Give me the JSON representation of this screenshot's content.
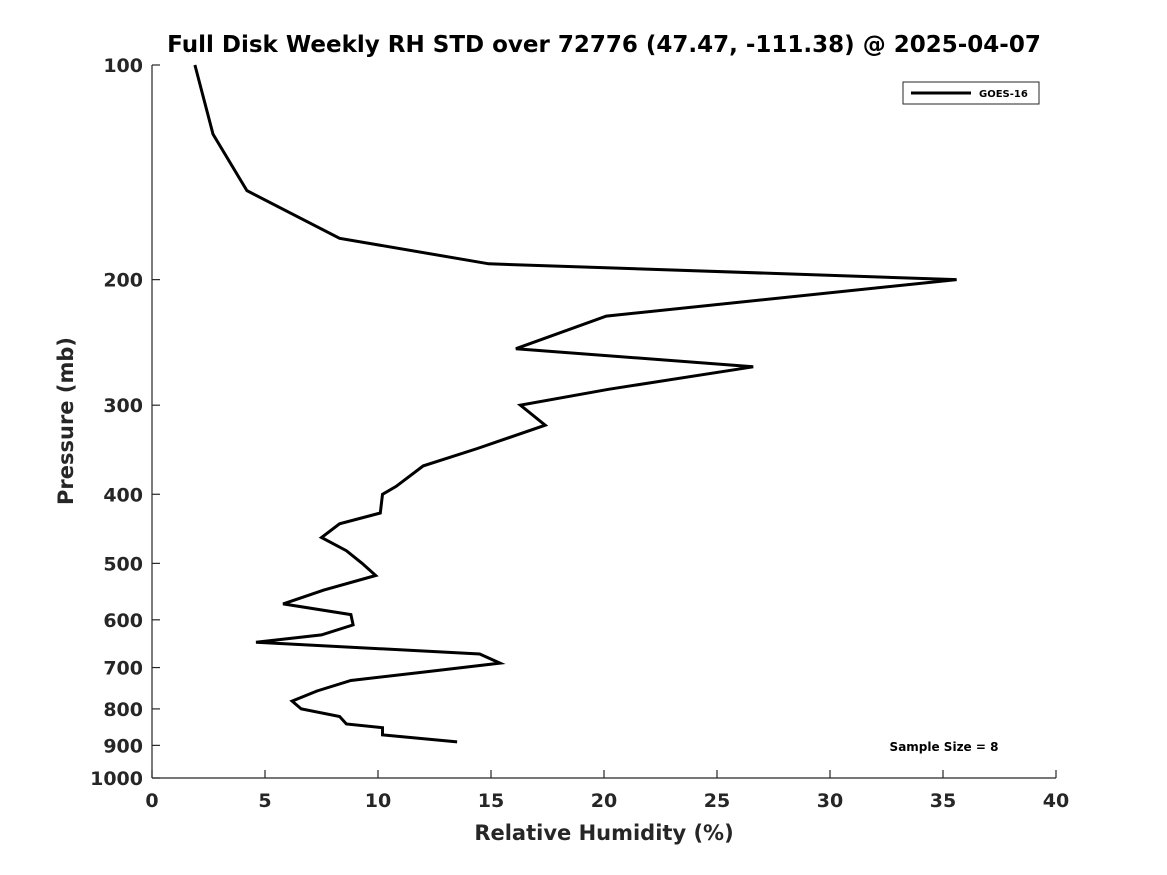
{
  "chart_data": {
    "type": "line",
    "title": "Full Disk Weekly RH STD over 72776 (47.47, -111.38) @ 2025-04-07",
    "xlabel": "Relative Humidity (%)",
    "ylabel": "Pressure (mb)",
    "xlim": [
      0,
      40
    ],
    "ylim": [
      100,
      1000
    ],
    "y_scale": "log",
    "y_reversed": true,
    "x_ticks": [
      0,
      5,
      10,
      15,
      20,
      25,
      30,
      35,
      40
    ],
    "y_ticks": [
      100,
      200,
      300,
      400,
      500,
      600,
      700,
      800,
      900,
      1000
    ],
    "grid": false,
    "legend_position": "top-right",
    "series": [
      {
        "name": "GOES-16",
        "color": "#000000",
        "points": [
          [
            1.9,
            100
          ],
          [
            2.7,
            125
          ],
          [
            4.2,
            150
          ],
          [
            8.3,
            175
          ],
          [
            14.9,
            190
          ],
          [
            35.6,
            200
          ],
          [
            20.1,
            225
          ],
          [
            16.1,
            250
          ],
          [
            26.6,
            265
          ],
          [
            20.2,
            285
          ],
          [
            16.3,
            300
          ],
          [
            17.4,
            320
          ],
          [
            14.4,
            345
          ],
          [
            12.0,
            365
          ],
          [
            10.8,
            390
          ],
          [
            10.2,
            400
          ],
          [
            10.1,
            425
          ],
          [
            8.3,
            440
          ],
          [
            7.5,
            460
          ],
          [
            8.6,
            480
          ],
          [
            9.3,
            500
          ],
          [
            9.9,
            520
          ],
          [
            7.6,
            545
          ],
          [
            5.8,
            570
          ],
          [
            8.8,
            590
          ],
          [
            8.9,
            610
          ],
          [
            7.5,
            630
          ],
          [
            4.6,
            645
          ],
          [
            14.5,
            670
          ],
          [
            15.4,
            690
          ],
          [
            12.1,
            710
          ],
          [
            8.8,
            730
          ],
          [
            7.3,
            755
          ],
          [
            6.2,
            780
          ],
          [
            6.6,
            800
          ],
          [
            8.3,
            820
          ],
          [
            8.6,
            840
          ],
          [
            10.2,
            850
          ],
          [
            10.2,
            870
          ],
          [
            13.5,
            890
          ]
        ]
      }
    ],
    "annotations": [
      "Sample Size = 8"
    ]
  }
}
